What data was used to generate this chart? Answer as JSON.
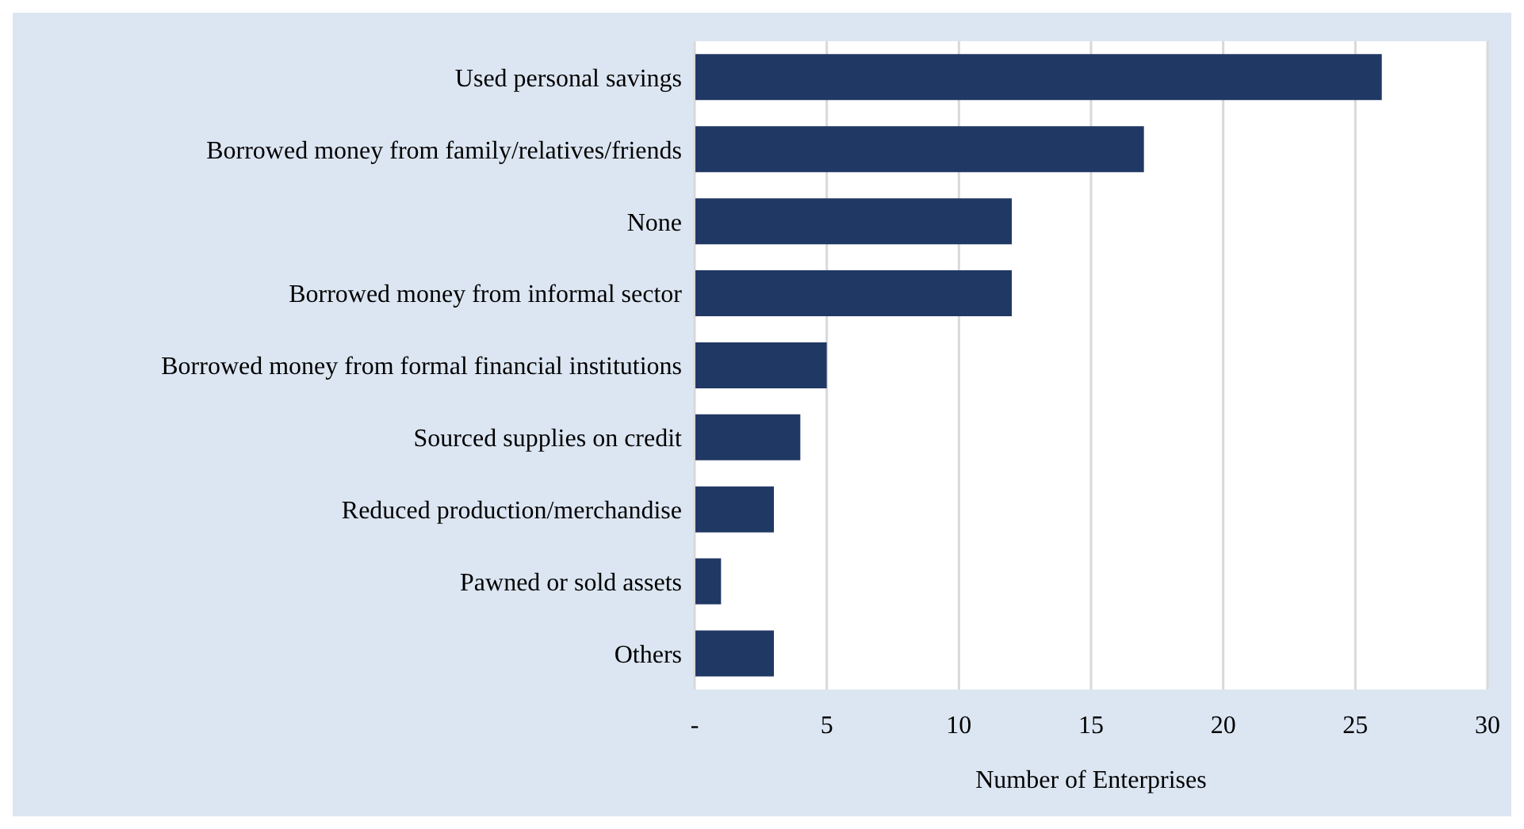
{
  "chart_data": {
    "type": "bar",
    "orientation": "horizontal",
    "xlabel": "Number of Enterprises",
    "categories": [
      "Used personal savings",
      "Borrowed money from family/relatives/friends",
      "None",
      "Borrowed money from informal sector",
      "Borrowed money from formal financial institutions",
      "Sourced supplies on credit",
      "Reduced production/merchandise",
      "Pawned or sold assets",
      "Others"
    ],
    "values": [
      26,
      17,
      12,
      12,
      5,
      4,
      3,
      1,
      3
    ],
    "color": "#203864",
    "xlim": [
      0,
      30
    ],
    "xticks": [
      {
        "value": 0,
        "label": "-"
      },
      5,
      10,
      15,
      20,
      25,
      30
    ],
    "grid": "x"
  }
}
